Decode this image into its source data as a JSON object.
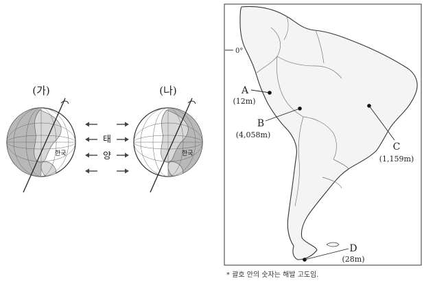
{
  "globes": {
    "left_label": "(가)",
    "right_label": "(나)",
    "ga_label": "한국",
    "na_label": "한국"
  },
  "sun": {
    "line1": "태",
    "line2": "양"
  },
  "map": {
    "equator_label": "0°",
    "points": [
      {
        "letter": "A",
        "elev": "(12m)"
      },
      {
        "letter": "B",
        "elev": "(4,058m)"
      },
      {
        "letter": "C",
        "elev": "(1,159m)"
      },
      {
        "letter": "D",
        "elev": "(28m)"
      }
    ],
    "footnote": "* 괄호 안의 숫자는 해발 고도임."
  },
  "colors": {
    "shade": "#b8b8b8",
    "land": "#f2f2f2",
    "outline": "#333333"
  }
}
